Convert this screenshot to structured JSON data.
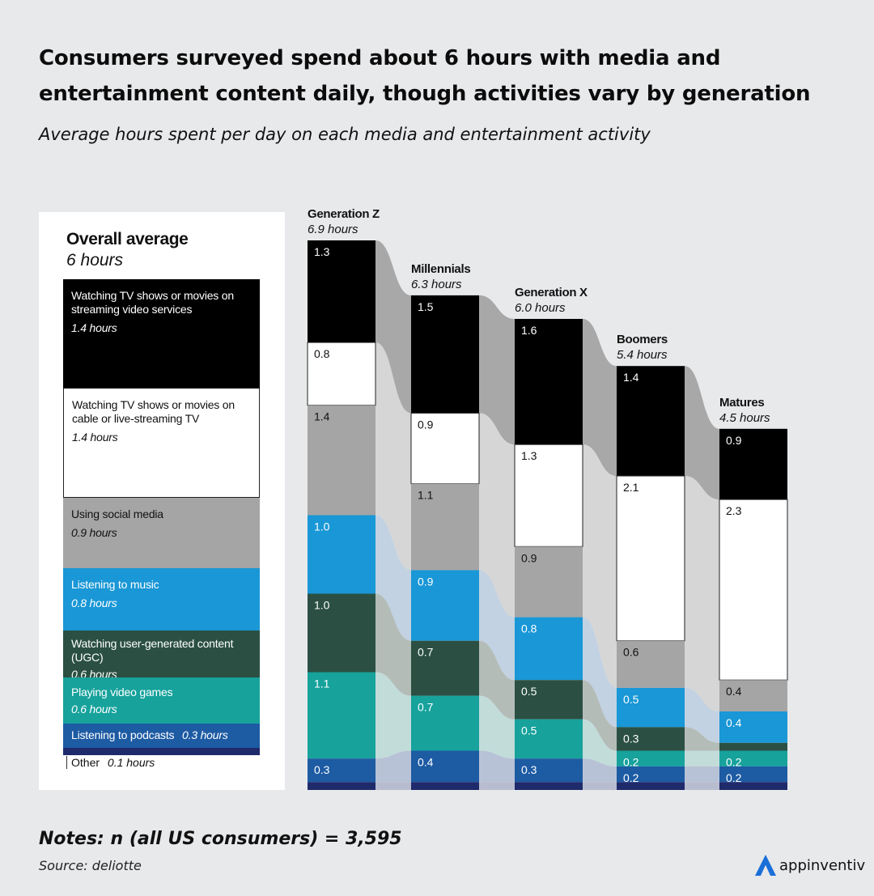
{
  "header": {
    "title": "Consumers surveyed spend about 6 hours with media and entertainment content daily, though activities vary by generation",
    "subtitle": "Average hours spent per day on each media and entertainment activity"
  },
  "overall": {
    "title": "Overall average",
    "subtitle": "6 hours",
    "items": [
      {
        "label": "Watching TV shows or movies on streaming video services",
        "hours_text": "1.4 hours",
        "value": 1.4
      },
      {
        "label": "Watching TV shows or movies on cable or live-streaming TV",
        "hours_text": "1.4 hours",
        "value": 1.4
      },
      {
        "label": "Using social media",
        "hours_text": "0.9 hours",
        "value": 0.9
      },
      {
        "label": "Listening to music",
        "hours_text": "0.8 hours",
        "value": 0.8
      },
      {
        "label": "Watching user-generated content (UGC)",
        "hours_text": "0.6 hours",
        "value": 0.6
      },
      {
        "label": "Playing video games",
        "hours_text": "0.6 hours",
        "value": 0.6
      },
      {
        "label": "Listening to podcasts",
        "hours_text": "0.3 hours",
        "value": 0.3
      },
      {
        "label": "Other",
        "hours_text": "0.1 hours",
        "value": 0.1
      }
    ]
  },
  "chart_data": {
    "type": "bar",
    "stacked": true,
    "categories": [
      "Generation Z",
      "Millennials",
      "Generation X",
      "Boomers",
      "Matures"
    ],
    "totals_text": [
      "6.9 hours",
      "6.3 hours",
      "6.0 hours",
      "5.4 hours",
      "4.5 hours"
    ],
    "series": [
      {
        "name": "Watching TV shows or movies on streaming video services",
        "values": [
          1.3,
          1.5,
          1.6,
          1.4,
          0.9
        ],
        "labels": [
          "1.3",
          "1.5",
          "1.6",
          "1.4",
          "0.9"
        ]
      },
      {
        "name": "Watching TV shows or movies on cable or live-streaming TV",
        "values": [
          0.8,
          0.9,
          1.3,
          2.1,
          2.3
        ],
        "labels": [
          "0.8",
          "0.9",
          "1.3",
          "2.1",
          "2.3"
        ]
      },
      {
        "name": "Using social media",
        "values": [
          1.4,
          1.1,
          0.9,
          0.6,
          0.4
        ],
        "labels": [
          "1.4",
          "1.1",
          "0.9",
          "0.6",
          "0.4"
        ]
      },
      {
        "name": "Listening to music",
        "values": [
          1.0,
          0.9,
          0.8,
          0.5,
          0.4
        ],
        "labels": [
          "1.0",
          "0.9",
          "0.8",
          "0.5",
          "0.4"
        ]
      },
      {
        "name": "Watching user-generated content (UGC)",
        "values": [
          1.0,
          0.7,
          0.5,
          0.3,
          0.1
        ],
        "labels": [
          "1.0",
          "0.7",
          "0.5",
          "0.3",
          ""
        ]
      },
      {
        "name": "Playing video games",
        "values": [
          1.1,
          0.7,
          0.5,
          0.2,
          0.2
        ],
        "labels": [
          "1.1",
          "0.7",
          "0.5",
          "0.2",
          "0.2"
        ]
      },
      {
        "name": "Listening to podcasts",
        "values": [
          0.3,
          0.4,
          0.3,
          0.2,
          0.2
        ],
        "labels": [
          "0.3",
          "0.4",
          "0.3",
          "0.2",
          "0.2"
        ]
      },
      {
        "name": "Other",
        "values": [
          0.1,
          0.1,
          0.1,
          0.1,
          0.1
        ],
        "labels": [
          "",
          "",
          "",
          "",
          ""
        ]
      }
    ]
  },
  "colors": [
    "#000000",
    "#ffffff",
    "#a5a5a5",
    "#1997d6",
    "#2b5043",
    "#17a29c",
    "#1d5ba3",
    "#1f2a6b"
  ],
  "link_colors": [
    "#a8a8a8",
    "#d6d6d6",
    "#d6d6d6",
    "#c2d2e2",
    "#b4bcb8",
    "#c2dcda",
    "#b8c2d6",
    "#b8bccf"
  ],
  "footer": {
    "notes": "Notes: n (all US consumers) = 3,595",
    "source": "Source: deliotte",
    "brand": "appinventiv"
  }
}
